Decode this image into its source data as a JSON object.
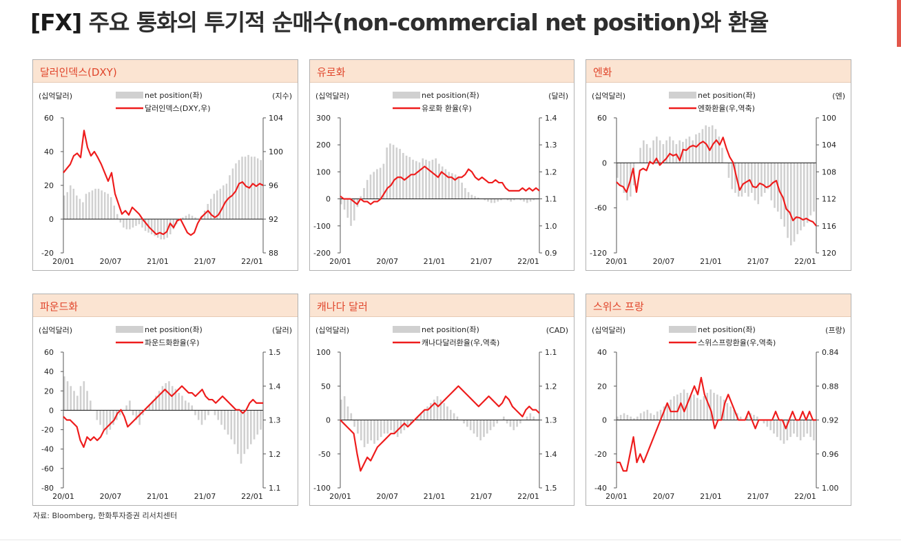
{
  "page": {
    "title_tag": "[FX]",
    "title_text": "주요 통화의 투기적 순매수(non-commercial net position)와 환율",
    "source": "자료: Bloomberg, 한화투자증권 리서치센터",
    "colors": {
      "bar": "#d0d0d0",
      "line": "#ee1c1c",
      "head_bg": "#fbe4d2",
      "head_text": "#e0452b"
    }
  },
  "chart_data": [
    {
      "type": "bar+line",
      "title": "달러인덱스(DXY)",
      "left_unit": "(십억달러)",
      "right_unit": "(지수)",
      "legend_bar": "net position(좌)",
      "legend_line": "달러인덱스(DXY,우)",
      "x_ticks": [
        "20/01",
        "20/07",
        "21/01",
        "21/07",
        "22/01"
      ],
      "left_ticks": [
        "60",
        "40",
        "20",
        "0",
        "-20"
      ],
      "left_range": [
        -20,
        60
      ],
      "right_ticks": [
        "104",
        "100",
        "96",
        "92",
        "88"
      ],
      "right_range": [
        88,
        104
      ],
      "right_inverted": false,
      "bars": [
        14,
        16,
        20,
        18,
        14,
        12,
        10,
        15,
        16,
        17,
        18,
        18,
        17,
        16,
        15,
        13,
        8,
        3,
        -2,
        -5,
        -6,
        -6,
        -5,
        -4,
        -3,
        -5,
        -7,
        -8,
        -9,
        -10,
        -11,
        -12,
        -12,
        -11,
        -9,
        -6,
        -3,
        0,
        1,
        2,
        3,
        2,
        1,
        0,
        2,
        5,
        9,
        12,
        15,
        17,
        18,
        20,
        21,
        26,
        30,
        33,
        35,
        37,
        37,
        38,
        37,
        37,
        36,
        35
      ],
      "line": [
        97.5,
        98,
        98.5,
        99.5,
        99.8,
        99.3,
        102.5,
        100.5,
        99.5,
        100,
        99.3,
        98.5,
        97.5,
        96.5,
        97.5,
        95,
        93.8,
        92.6,
        93,
        92.5,
        93.4,
        93,
        92.6,
        92,
        91.5,
        91,
        90.6,
        90.2,
        90.4,
        90.2,
        90.5,
        91.5,
        91,
        91.8,
        92,
        91.2,
        90.4,
        90.1,
        90.4,
        91.5,
        92.2,
        92.6,
        93.0,
        92.5,
        92.2,
        92.5,
        93.2,
        94,
        94.5,
        94.8,
        95.3,
        96.2,
        96.4,
        95.9,
        95.7,
        96.2,
        95.9,
        96.2,
        96
      ]
    },
    {
      "type": "bar+line",
      "title": "유로화",
      "left_unit": "(십억달러)",
      "right_unit": "(달러)",
      "legend_bar": "net position(좌)",
      "legend_line": "유로화 환율(우)",
      "x_ticks": [
        "20/01",
        "20/07",
        "21/01",
        "21/07",
        "22/01"
      ],
      "left_ticks": [
        "300",
        "200",
        "100",
        "0",
        "-100",
        "-200"
      ],
      "left_range": [
        -200,
        300
      ],
      "right_ticks": [
        "1.4",
        "1.3",
        "1.2",
        "1.1",
        "1.0",
        "0.9"
      ],
      "right_range": [
        0.9,
        1.4
      ],
      "right_inverted": false,
      "bars": [
        -20,
        -40,
        -70,
        -100,
        -80,
        -30,
        10,
        40,
        70,
        90,
        100,
        110,
        115,
        130,
        190,
        205,
        200,
        190,
        185,
        170,
        160,
        155,
        145,
        140,
        135,
        150,
        145,
        140,
        145,
        150,
        130,
        120,
        110,
        100,
        95,
        90,
        80,
        60,
        40,
        25,
        15,
        10,
        5,
        0,
        -5,
        -10,
        -15,
        -15,
        -10,
        -5,
        0,
        -5,
        -10,
        -5,
        0,
        -5,
        -10,
        -15,
        -10,
        -5,
        0
      ],
      "line": [
        1.11,
        1.1,
        1.1,
        1.1,
        1.09,
        1.08,
        1.1,
        1.09,
        1.09,
        1.08,
        1.09,
        1.09,
        1.1,
        1.12,
        1.14,
        1.15,
        1.17,
        1.18,
        1.18,
        1.17,
        1.18,
        1.19,
        1.19,
        1.2,
        1.21,
        1.22,
        1.21,
        1.2,
        1.19,
        1.18,
        1.2,
        1.19,
        1.18,
        1.18,
        1.17,
        1.18,
        1.18,
        1.19,
        1.21,
        1.2,
        1.18,
        1.17,
        1.18,
        1.17,
        1.16,
        1.16,
        1.17,
        1.16,
        1.16,
        1.14,
        1.13,
        1.13,
        1.13,
        1.13,
        1.14,
        1.13,
        1.14,
        1.13,
        1.14,
        1.13
      ]
    },
    {
      "type": "bar+line",
      "title": "엔화",
      "left_unit": "(십억달러)",
      "right_unit": "(엔)",
      "legend_bar": "net position(좌)",
      "legend_line": "엔화환율(우,역축)",
      "x_ticks": [
        "20/01",
        "20/07",
        "21/01",
        "21/07",
        "22/01"
      ],
      "left_ticks": [
        "60",
        "0",
        "-60",
        "-120"
      ],
      "left_range": [
        -120,
        60
      ],
      "right_ticks": [
        "100",
        "104",
        "108",
        "112",
        "116",
        "120"
      ],
      "right_range": [
        100,
        120
      ],
      "right_inverted": true,
      "bars": [
        -20,
        -30,
        -40,
        -50,
        -45,
        -30,
        0,
        20,
        30,
        25,
        20,
        30,
        35,
        30,
        25,
        30,
        35,
        30,
        25,
        30,
        28,
        32,
        35,
        30,
        38,
        40,
        45,
        50,
        48,
        50,
        45,
        35,
        20,
        0,
        -20,
        -35,
        -40,
        -45,
        -45,
        -40,
        -45,
        -40,
        -50,
        -55,
        -45,
        -40,
        -35,
        -50,
        -60,
        -65,
        -75,
        -85,
        -100,
        -110,
        -105,
        -95,
        -90,
        -85,
        -80,
        -70,
        -65
      ],
      "line": [
        109.5,
        110,
        110.2,
        111,
        109.5,
        107.5,
        111,
        107.8,
        107.5,
        107.8,
        106.5,
        106.8,
        106,
        107,
        106.5,
        106,
        105.3,
        105.6,
        105.4,
        106.3,
        104.7,
        104.8,
        104.3,
        104.1,
        104.3,
        103.8,
        103.5,
        103.9,
        104.8,
        103.9,
        103.3,
        104,
        102.9,
        104.5,
        105.8,
        106.6,
        108.7,
        110.7,
        109.8,
        109.5,
        109.2,
        110.2,
        110.3,
        109.7,
        109.9,
        110.3,
        110.1,
        109.6,
        109.3,
        110.9,
        111.8,
        113.5,
        114.0,
        115.2,
        114.7,
        114.8,
        115.1,
        114.9,
        115.2,
        115.4,
        116.0
      ]
    },
    {
      "type": "bar+line",
      "title": "파운드화",
      "left_unit": "(십억달러)",
      "right_unit": "(달러)",
      "legend_bar": "net position(좌)",
      "legend_line": "파운드화환율(우)",
      "x_ticks": [
        "20/01",
        "20/07",
        "21/01",
        "21/07",
        "22/01"
      ],
      "left_ticks": [
        "60",
        "40",
        "20",
        "0",
        "-20",
        "-40",
        "-60",
        "-80"
      ],
      "left_range": [
        -80,
        60
      ],
      "right_ticks": [
        "1.5",
        "1.4",
        "1.3",
        "1.2",
        "1.1"
      ],
      "right_range": [
        1.1,
        1.5
      ],
      "right_inverted": false,
      "bars": [
        35,
        30,
        25,
        20,
        15,
        25,
        30,
        20,
        10,
        0,
        -10,
        -15,
        -20,
        -25,
        -20,
        -15,
        -10,
        -5,
        0,
        5,
        10,
        -5,
        -10,
        -15,
        -5,
        0,
        5,
        10,
        15,
        20,
        25,
        28,
        30,
        25,
        22,
        18,
        15,
        10,
        8,
        5,
        -5,
        -10,
        -15,
        -10,
        -5,
        0,
        -5,
        -10,
        -15,
        -20,
        -25,
        -30,
        -35,
        -45,
        -55,
        -45,
        -40,
        -35,
        -30,
        -25,
        -20
      ],
      "line": [
        1.31,
        1.3,
        1.3,
        1.29,
        1.28,
        1.24,
        1.22,
        1.25,
        1.24,
        1.25,
        1.24,
        1.25,
        1.27,
        1.28,
        1.29,
        1.3,
        1.32,
        1.33,
        1.31,
        1.28,
        1.29,
        1.3,
        1.31,
        1.32,
        1.33,
        1.34,
        1.35,
        1.36,
        1.37,
        1.38,
        1.39,
        1.38,
        1.37,
        1.38,
        1.39,
        1.4,
        1.39,
        1.38,
        1.38,
        1.37,
        1.38,
        1.39,
        1.37,
        1.36,
        1.36,
        1.35,
        1.36,
        1.37,
        1.36,
        1.35,
        1.34,
        1.33,
        1.33,
        1.32,
        1.33,
        1.35,
        1.36,
        1.35,
        1.35,
        1.35
      ]
    },
    {
      "type": "bar+line",
      "title": "캐나다 달러",
      "left_unit": "(십억달러)",
      "right_unit": "(CAD)",
      "legend_bar": "net position(좌)",
      "legend_line": "캐나다달러환율(우,역축)",
      "x_ticks": [
        "20/01",
        "20/07",
        "21/01",
        "21/07",
        "22/01"
      ],
      "left_ticks": [
        "100",
        "50",
        "0",
        "-50",
        "-100"
      ],
      "left_range": [
        -100,
        100
      ],
      "right_ticks": [
        "1.1",
        "1.2",
        "1.3",
        "1.4",
        "1.5"
      ],
      "right_range": [
        1.1,
        1.5
      ],
      "right_inverted": true,
      "bars": [
        30,
        35,
        20,
        10,
        -10,
        -20,
        -30,
        -40,
        -35,
        -30,
        -35,
        -30,
        -25,
        -20,
        -20,
        -15,
        -20,
        -25,
        -20,
        -15,
        -10,
        -5,
        0,
        5,
        10,
        15,
        20,
        25,
        30,
        35,
        30,
        25,
        20,
        15,
        10,
        5,
        0,
        -5,
        -10,
        -15,
        -20,
        -25,
        -30,
        -25,
        -20,
        -15,
        -10,
        -5,
        0,
        5,
        -5,
        -10,
        -15,
        -10,
        -5,
        0,
        5,
        10,
        5,
        0
      ],
      "line": [
        1.3,
        1.31,
        1.32,
        1.33,
        1.34,
        1.4,
        1.45,
        1.43,
        1.41,
        1.42,
        1.4,
        1.38,
        1.37,
        1.36,
        1.35,
        1.34,
        1.34,
        1.33,
        1.32,
        1.31,
        1.32,
        1.31,
        1.3,
        1.29,
        1.28,
        1.27,
        1.27,
        1.26,
        1.25,
        1.26,
        1.25,
        1.24,
        1.23,
        1.22,
        1.21,
        1.2,
        1.21,
        1.22,
        1.23,
        1.24,
        1.25,
        1.26,
        1.25,
        1.24,
        1.23,
        1.24,
        1.25,
        1.26,
        1.25,
        1.23,
        1.24,
        1.26,
        1.27,
        1.28,
        1.29,
        1.27,
        1.26,
        1.27,
        1.27,
        1.28
      ]
    },
    {
      "type": "bar+line",
      "title": "스위스 프랑",
      "left_unit": "(십억달러)",
      "right_unit": "(프랑)",
      "legend_bar": "net position(좌)",
      "legend_line": "스위스프랑환율(우,역축)",
      "x_ticks": [
        "20/01",
        "20/07",
        "21/01",
        "21/07",
        "22/01"
      ],
      "left_ticks": [
        "40",
        "20",
        "0",
        "-20",
        "-40"
      ],
      "left_range": [
        -40,
        40
      ],
      "right_ticks": [
        "0.84",
        "0.88",
        "0.92",
        "0.96",
        "1.00"
      ],
      "right_range": [
        0.84,
        1.0
      ],
      "right_inverted": true,
      "bars": [
        2,
        3,
        4,
        3,
        2,
        1,
        2,
        4,
        5,
        6,
        4,
        3,
        5,
        6,
        8,
        10,
        12,
        14,
        15,
        16,
        18,
        16,
        14,
        15,
        13,
        12,
        14,
        16,
        18,
        16,
        15,
        14,
        12,
        10,
        8,
        6,
        4,
        2,
        0,
        2,
        4,
        3,
        2,
        0,
        -2,
        -4,
        -6,
        -8,
        -10,
        -12,
        -14,
        -12,
        -10,
        -8,
        -10,
        -12,
        -10,
        -8,
        -10,
        -12
      ],
      "line": [
        0.97,
        0.97,
        0.98,
        0.98,
        0.96,
        0.94,
        0.97,
        0.96,
        0.97,
        0.96,
        0.95,
        0.94,
        0.93,
        0.92,
        0.91,
        0.9,
        0.91,
        0.91,
        0.91,
        0.9,
        0.91,
        0.9,
        0.89,
        0.88,
        0.89,
        0.87,
        0.89,
        0.9,
        0.91,
        0.93,
        0.92,
        0.92,
        0.9,
        0.89,
        0.9,
        0.91,
        0.92,
        0.92,
        0.92,
        0.91,
        0.92,
        0.93,
        0.92,
        0.92,
        0.92,
        0.92,
        0.92,
        0.91,
        0.92,
        0.92,
        0.93,
        0.92,
        0.91,
        0.92,
        0.92,
        0.91,
        0.92,
        0.91,
        0.92,
        0.92
      ]
    }
  ]
}
